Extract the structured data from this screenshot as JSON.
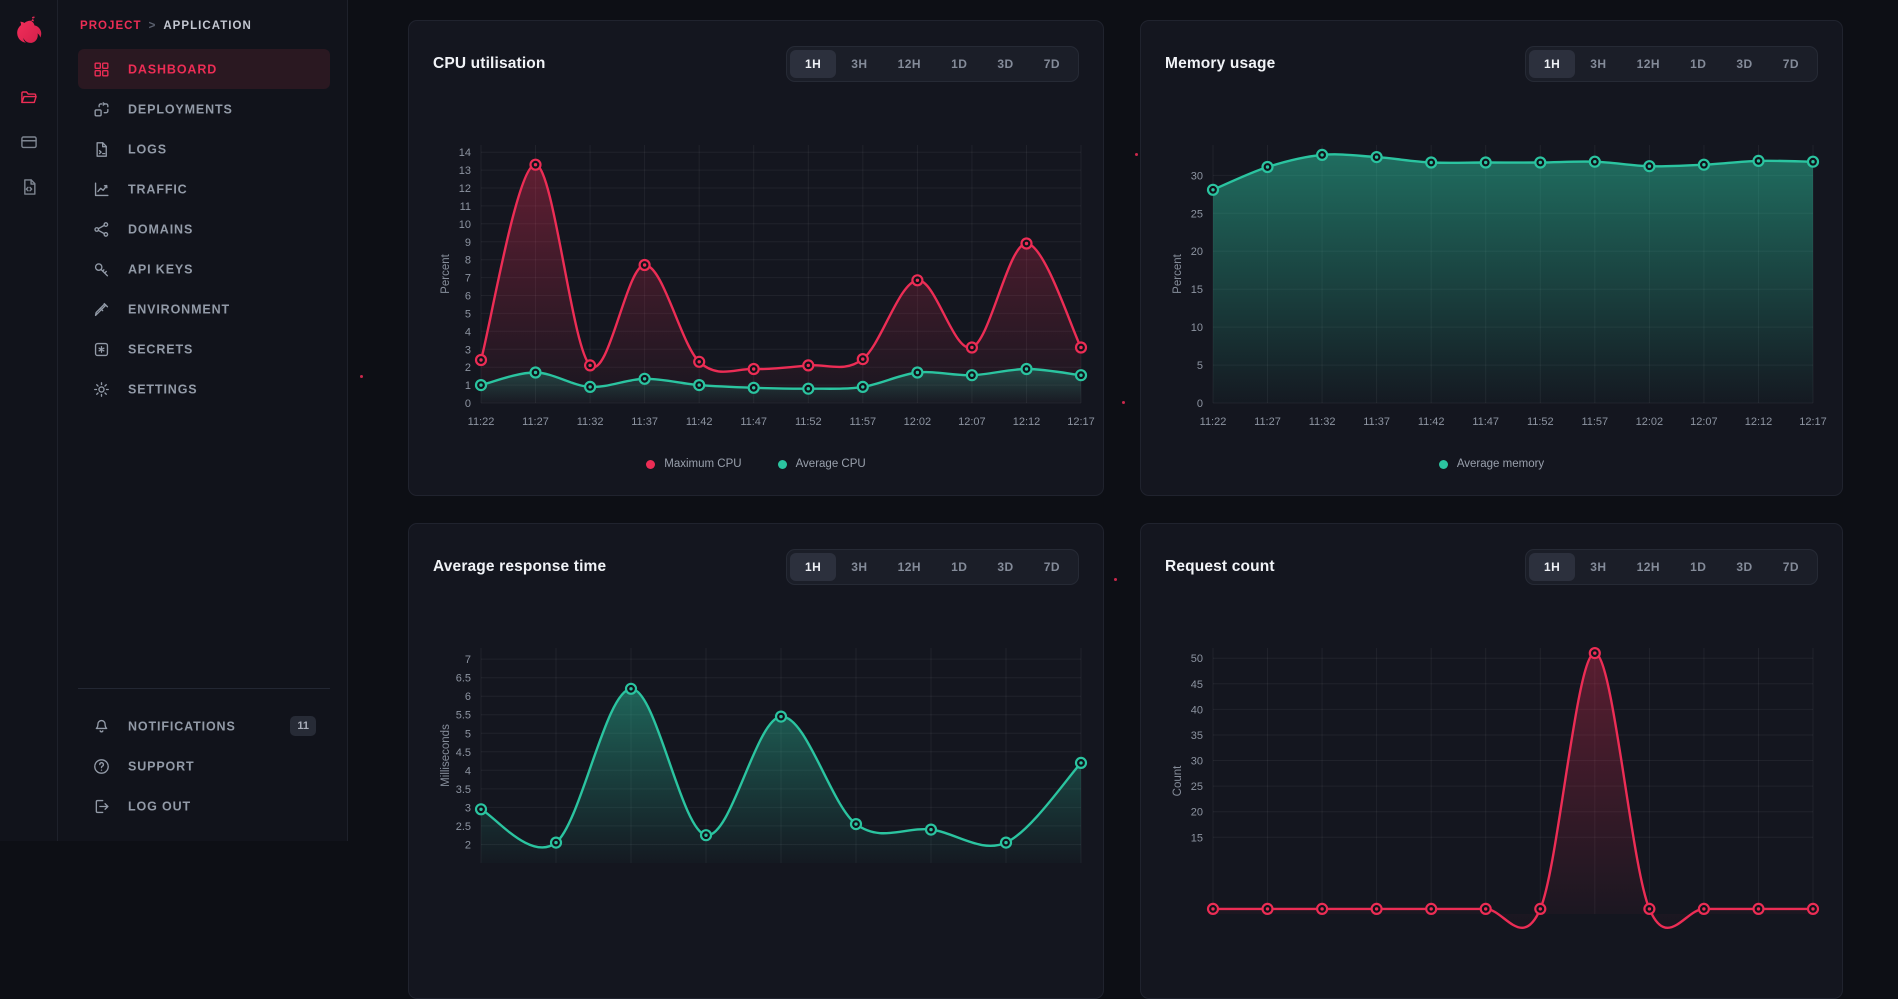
{
  "breadcrumb": {
    "project": "PROJECT",
    "separator": ">",
    "application": "APPLICATION"
  },
  "sidebar": {
    "rail": [
      {
        "icon": "nest-logo"
      },
      {
        "icon": "folder-icon",
        "active": true
      },
      {
        "icon": "card-icon"
      },
      {
        "icon": "file-code-icon"
      }
    ],
    "items": [
      {
        "label": "DASHBOARD",
        "icon": "dashboard-icon",
        "active": true
      },
      {
        "label": "DEPLOYMENTS",
        "icon": "deployments-icon"
      },
      {
        "label": "LOGS",
        "icon": "logs-icon"
      },
      {
        "label": "TRAFFIC",
        "icon": "traffic-icon"
      },
      {
        "label": "DOMAINS",
        "icon": "domains-icon"
      },
      {
        "label": "API KEYS",
        "icon": "api-keys-icon"
      },
      {
        "label": "ENVIRONMENT",
        "icon": "environment-icon"
      },
      {
        "label": "SECRETS",
        "icon": "secrets-icon"
      },
      {
        "label": "SETTINGS",
        "icon": "settings-icon"
      }
    ],
    "footer": [
      {
        "label": "NOTIFICATIONS",
        "icon": "bell-icon",
        "badge": "11"
      },
      {
        "label": "SUPPORT",
        "icon": "help-icon"
      },
      {
        "label": "LOG OUT",
        "icon": "logout-icon"
      }
    ]
  },
  "time_ranges": {
    "options": [
      "1H",
      "3H",
      "12H",
      "1D",
      "3D",
      "7D"
    ],
    "selected": "1H"
  },
  "colors": {
    "page_bg": "#0d0f15",
    "card_bg": "#14161f",
    "sidebar_bg": "#11131b",
    "accent_red": "#ec2d55",
    "accent_teal": "#2bc4a0",
    "active_item_bg": "#2a1821",
    "grid_line": "rgba(255,255,255,0.055)"
  },
  "chart_data": [
    {
      "id": "cpu",
      "type": "line",
      "title": "CPU utilisation",
      "ylabel": "Percent",
      "categories": [
        "11:22",
        "11:27",
        "11:32",
        "11:37",
        "11:42",
        "11:47",
        "11:52",
        "11:57",
        "12:02",
        "12:07",
        "12:12",
        "12:17"
      ],
      "series": [
        {
          "name": "Maximum CPU",
          "color": "#ec2d55",
          "values": [
            2.4,
            13.3,
            2.1,
            7.7,
            2.3,
            1.9,
            2.1,
            2.45,
            6.85,
            3.1,
            8.9,
            3.1
          ]
        },
        {
          "name": "Average CPU",
          "color": "#2bc4a0",
          "values": [
            1.0,
            1.7,
            0.9,
            1.35,
            1.0,
            0.85,
            0.8,
            0.9,
            1.7,
            1.55,
            1.9,
            1.55
          ]
        }
      ],
      "yticks": [
        0,
        1,
        2,
        3,
        4,
        5,
        6,
        7,
        8,
        9,
        10,
        11,
        12,
        13,
        14
      ],
      "ylim": [
        0,
        14.4
      ],
      "grid": true,
      "legend_position": "bottom"
    },
    {
      "id": "memory",
      "type": "area",
      "title": "Memory usage",
      "ylabel": "Percent",
      "categories": [
        "11:22",
        "11:27",
        "11:32",
        "11:37",
        "11:42",
        "11:47",
        "11:52",
        "11:57",
        "12:02",
        "12:07",
        "12:12",
        "12:17"
      ],
      "series": [
        {
          "name": "Average memory",
          "color": "#2bc4a0",
          "values": [
            28.1,
            31.1,
            32.7,
            32.4,
            31.7,
            31.7,
            31.7,
            31.8,
            31.2,
            31.4,
            31.9,
            31.8
          ]
        }
      ],
      "yticks": [
        0,
        5,
        10,
        15,
        20,
        25,
        30
      ],
      "ylim": [
        0,
        34
      ],
      "grid": true,
      "legend_position": "bottom"
    },
    {
      "id": "response",
      "type": "area",
      "title": "Average response time",
      "ylabel": "Milliseconds",
      "series": [
        {
          "color": "#2bc4a0",
          "values": [
            2.95,
            2.05,
            6.2,
            2.25,
            5.45,
            2.55,
            2.4,
            2.05,
            4.2
          ]
        }
      ],
      "yticks": [
        2,
        2.5,
        3,
        3.5,
        4,
        4.5,
        5,
        5.5,
        6,
        6.5,
        7
      ],
      "ylim": [
        1.5,
        7.3
      ],
      "grid": true
    },
    {
      "id": "request",
      "type": "line",
      "title": "Request count",
      "ylabel": "Count",
      "series": [
        {
          "color": "#ec2d55",
          "values": [
            1,
            1,
            1,
            1,
            1,
            1,
            1,
            51,
            1,
            1,
            1,
            1
          ]
        }
      ],
      "yticks": [
        15,
        20,
        25,
        30,
        35,
        40,
        45,
        50
      ],
      "ylim": [
        0,
        52
      ],
      "grid": true
    }
  ]
}
